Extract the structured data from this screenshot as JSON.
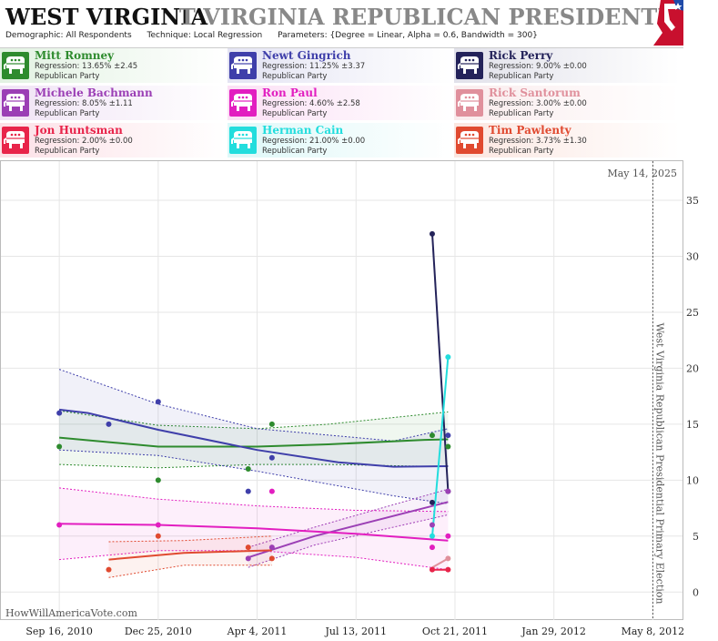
{
  "header": {
    "title_state": "WEST VIRGINIA",
    "title_race": "T VIRGINIA REPUBLICAN PRESIDENTIAL PRIMA",
    "demographic_label": "Demographic:",
    "demographic_value": "All Respondents",
    "technique_label": "Technique:",
    "technique_value": "Local Regression",
    "parameters_label": "Parameters:",
    "parameters_value": "{Degree = Linear, Alpha = 0.6, Bandwidth = 300}"
  },
  "legend": [
    {
      "name": "Mitt Romney",
      "regression": "Regression: 13.65% ±2.45",
      "party": "Republican Party",
      "color": "#2e8b2e",
      "bg": "#e2f2e2"
    },
    {
      "name": "Newt Gingrich",
      "regression": "Regression: 11.25% ±3.37",
      "party": "Republican Party",
      "color": "#3f3faa",
      "bg": "#e4e4f3"
    },
    {
      "name": "Rick Perry",
      "regression": "Regression: 9.00% ±0.00",
      "party": "Republican Party",
      "color": "#24235a",
      "bg": "#e1e1ea"
    },
    {
      "name": "Michele Bachmann",
      "regression": "Regression: 8.05% ±1.11",
      "party": "Republican Party",
      "color": "#9b3fb5",
      "bg": "#f0e3f5"
    },
    {
      "name": "Ron Paul",
      "regression": "Regression: 4.60% ±2.58",
      "party": "Republican Party",
      "color": "#e21ec0",
      "bg": "#fbe0f5"
    },
    {
      "name": "Rick Santorum",
      "regression": "Regression: 3.00% ±0.00",
      "party": "Republican Party",
      "color": "#e0909c",
      "bg": "#faeced"
    },
    {
      "name": "Jon Huntsman",
      "regression": "Regression: 2.00% ±0.00",
      "party": "Republican Party",
      "color": "#e8244a",
      "bg": "#fce0e6"
    },
    {
      "name": "Herman Cain",
      "regression": "Regression: 21.00% ±0.00",
      "party": "Republican Party",
      "color": "#22dddd",
      "bg": "#def8f8"
    },
    {
      "name": "Tim Pawlenty",
      "regression": "Regression: 3.73% ±1.30",
      "party": "Republican Party",
      "color": "#e04a30",
      "bg": "#fbe6e0"
    }
  ],
  "chart_data": {
    "type": "line",
    "date_label": "May 14, 2025",
    "vertical_label": "West Virginia Republican Presidential Primary Election",
    "watermark": "HowWillAmericaVote.com",
    "x_ticks": [
      "Sep 16, 2010",
      "Dec 25, 2010",
      "Apr 4, 2011",
      "Jul 13, 2011",
      "Oct 21, 2011",
      "Jan 29, 2012",
      "May 8, 2012"
    ],
    "y_ticks": [
      "0",
      "5",
      "10",
      "15",
      "20",
      "25",
      "30",
      "35"
    ],
    "ylim": [
      -2.5,
      38.5
    ],
    "xlim": [
      "2010-07-19",
      "2012-06-07"
    ],
    "event_date": "2012-05-08",
    "grid": true,
    "series": [
      {
        "name": "Mitt Romney",
        "color": "#2e8b2e",
        "points": [
          [
            "2010-09-16",
            13
          ],
          [
            "2010-12-25",
            10
          ],
          [
            "2011-03-26",
            11
          ],
          [
            "2011-04-19",
            15
          ],
          [
            "2011-09-28",
            14
          ],
          [
            "2011-10-14",
            13
          ]
        ],
        "trend": [
          [
            "2010-09-16",
            13.8
          ],
          [
            "2010-12-25",
            13.0
          ],
          [
            "2011-04-04",
            13.0
          ],
          [
            "2011-06-15",
            13.2
          ],
          [
            "2011-09-20",
            13.6
          ],
          [
            "2011-10-14",
            13.65
          ]
        ],
        "band_upper": [
          [
            "2010-09-16",
            16.2
          ],
          [
            "2010-12-25",
            14.9
          ],
          [
            "2011-04-04",
            14.6
          ],
          [
            "2011-06-15",
            15.0
          ],
          [
            "2011-10-14",
            16.1
          ]
        ],
        "band_lower": [
          [
            "2010-09-16",
            11.4
          ],
          [
            "2010-12-25",
            11.1
          ],
          [
            "2011-04-04",
            11.4
          ],
          [
            "2011-06-15",
            11.4
          ],
          [
            "2011-10-14",
            11.2
          ]
        ]
      },
      {
        "name": "Newt Gingrich",
        "color": "#3f3faa",
        "points": [
          [
            "2010-09-16",
            16
          ],
          [
            "2010-11-05",
            15
          ],
          [
            "2010-12-25",
            17
          ],
          [
            "2011-03-26",
            9
          ],
          [
            "2011-04-19",
            12
          ],
          [
            "2011-10-14",
            14
          ]
        ],
        "trend": [
          [
            "2010-09-16",
            16.3
          ],
          [
            "2010-10-15",
            16.0
          ],
          [
            "2010-12-25",
            14.5
          ],
          [
            "2011-04-04",
            12.7
          ],
          [
            "2011-06-25",
            11.6
          ],
          [
            "2011-08-20",
            11.2
          ],
          [
            "2011-10-14",
            11.25
          ]
        ],
        "band_upper": [
          [
            "2010-09-16",
            19.9
          ],
          [
            "2010-12-25",
            16.8
          ],
          [
            "2011-04-04",
            14.6
          ],
          [
            "2011-08-20",
            13.5
          ],
          [
            "2011-10-14",
            14.6
          ]
        ],
        "band_lower": [
          [
            "2010-09-16",
            12.7
          ],
          [
            "2010-12-25",
            12.2
          ],
          [
            "2011-04-04",
            10.8
          ],
          [
            "2011-08-20",
            8.6
          ],
          [
            "2011-10-14",
            7.9
          ]
        ]
      },
      {
        "name": "Rick Perry",
        "color": "#24235a",
        "points": [
          [
            "2011-09-28",
            32
          ],
          [
            "2011-09-28",
            8
          ],
          [
            "2011-10-14",
            9
          ]
        ],
        "trend": [
          [
            "2011-09-28",
            32
          ],
          [
            "2011-10-14",
            9
          ]
        ]
      },
      {
        "name": "Michele Bachmann",
        "color": "#9b3fb5",
        "points": [
          [
            "2011-03-26",
            3
          ],
          [
            "2011-04-19",
            4
          ],
          [
            "2011-09-28",
            6
          ],
          [
            "2011-10-14",
            9
          ]
        ],
        "trend": [
          [
            "2011-03-26",
            3.1
          ],
          [
            "2011-06-01",
            5.0
          ],
          [
            "2011-10-14",
            8.05
          ]
        ],
        "band_upper": [
          [
            "2011-03-26",
            4.0
          ],
          [
            "2011-06-01",
            5.8
          ],
          [
            "2011-10-14",
            9.2
          ]
        ],
        "band_lower": [
          [
            "2011-03-26",
            2.2
          ],
          [
            "2011-06-01",
            4.2
          ],
          [
            "2011-10-14",
            6.9
          ]
        ]
      },
      {
        "name": "Ron Paul",
        "color": "#e21ec0",
        "points": [
          [
            "2010-09-16",
            6
          ],
          [
            "2010-12-25",
            6
          ],
          [
            "2011-04-19",
            9
          ],
          [
            "2011-09-28",
            4
          ],
          [
            "2011-10-14",
            5
          ]
        ],
        "trend": [
          [
            "2010-09-16",
            6.1
          ],
          [
            "2010-12-25",
            6.0
          ],
          [
            "2011-04-04",
            5.7
          ],
          [
            "2011-07-13",
            5.2
          ],
          [
            "2011-10-14",
            4.6
          ]
        ],
        "band_upper": [
          [
            "2010-09-16",
            9.3
          ],
          [
            "2010-12-25",
            8.3
          ],
          [
            "2011-04-04",
            7.7
          ],
          [
            "2011-07-13",
            7.3
          ],
          [
            "2011-10-14",
            7.2
          ]
        ],
        "band_lower": [
          [
            "2010-09-16",
            2.9
          ],
          [
            "2010-12-25",
            3.7
          ],
          [
            "2011-04-04",
            3.7
          ],
          [
            "2011-07-13",
            3.1
          ],
          [
            "2011-10-14",
            2.0
          ]
        ]
      },
      {
        "name": "Rick Santorum",
        "color": "#e0909c",
        "points": [
          [
            "2011-10-14",
            3
          ]
        ],
        "trend": [
          [
            "2011-09-28",
            2.2
          ],
          [
            "2011-10-14",
            3.0
          ]
        ]
      },
      {
        "name": "Jon Huntsman",
        "color": "#e8244a",
        "points": [
          [
            "2011-09-28",
            2
          ],
          [
            "2011-10-14",
            2
          ]
        ],
        "trend": [
          [
            "2011-09-28",
            2
          ],
          [
            "2011-10-14",
            2
          ]
        ]
      },
      {
        "name": "Herman Cain",
        "color": "#22dddd",
        "points": [
          [
            "2011-09-28",
            5
          ],
          [
            "2011-10-14",
            21
          ]
        ],
        "trend": [
          [
            "2011-09-28",
            5
          ],
          [
            "2011-10-14",
            21
          ]
        ]
      },
      {
        "name": "Tim Pawlenty",
        "color": "#e04a30",
        "points": [
          [
            "2010-11-05",
            2
          ],
          [
            "2010-12-25",
            5
          ],
          [
            "2011-03-26",
            4
          ],
          [
            "2011-04-19",
            3
          ]
        ],
        "trend": [
          [
            "2010-11-05",
            2.9
          ],
          [
            "2011-01-20",
            3.5
          ],
          [
            "2011-04-19",
            3.73
          ]
        ],
        "band_upper": [
          [
            "2010-11-05",
            4.5
          ],
          [
            "2011-01-20",
            4.6
          ],
          [
            "2011-04-19",
            5.0
          ]
        ],
        "band_lower": [
          [
            "2010-11-05",
            1.3
          ],
          [
            "2011-01-20",
            2.4
          ],
          [
            "2011-04-19",
            2.4
          ]
        ]
      }
    ]
  }
}
